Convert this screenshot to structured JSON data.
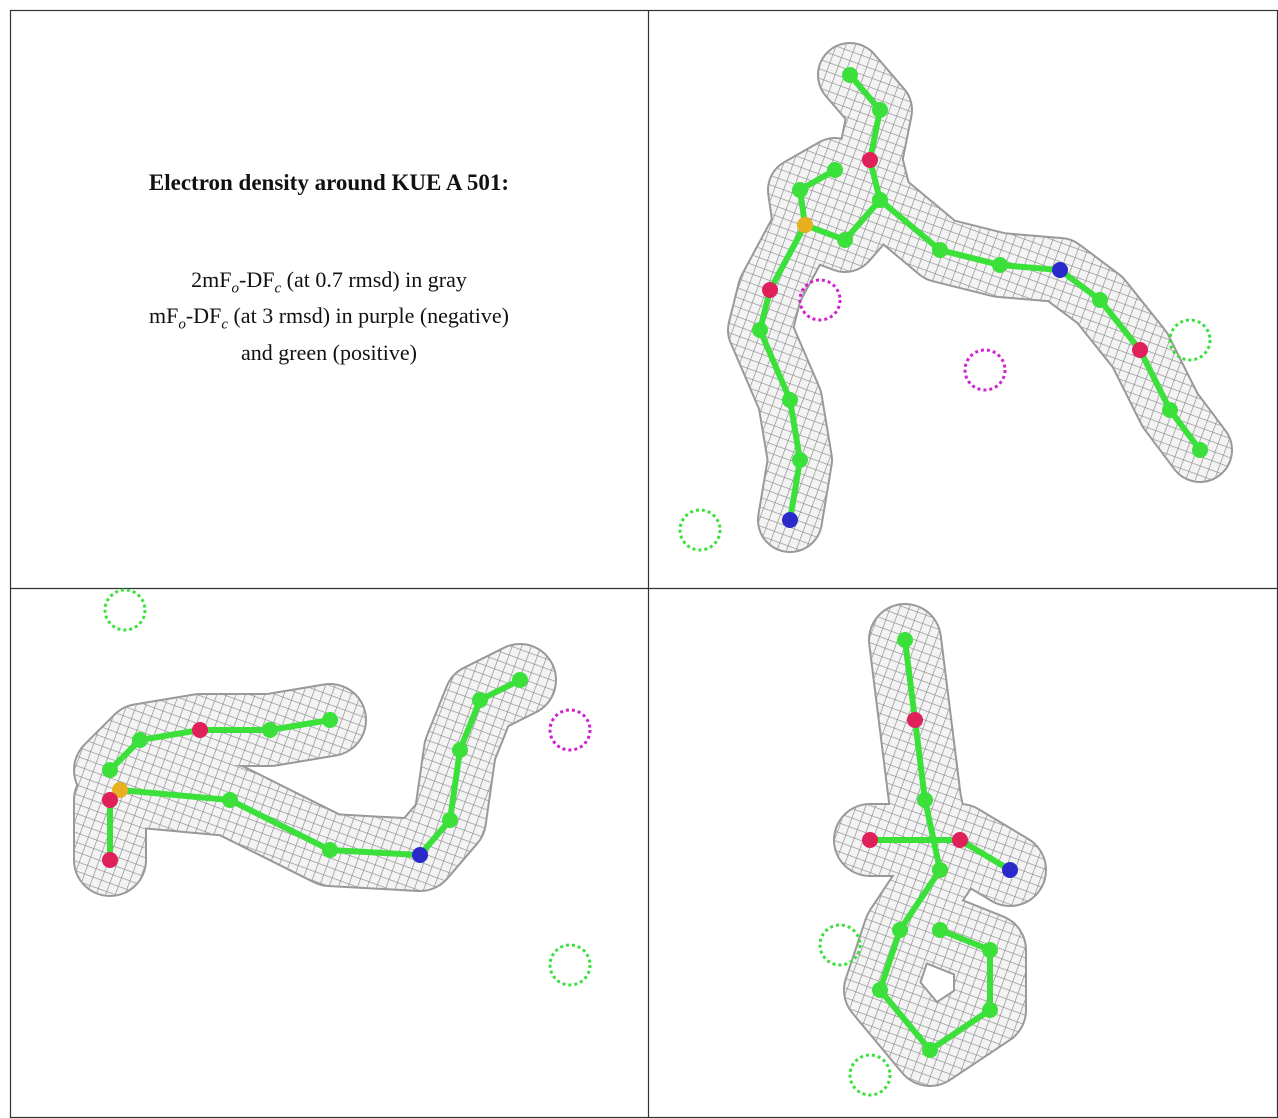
{
  "title": "Electron density around KUE A 501:",
  "legend": [
    {
      "parts": [
        "2mF",
        "o",
        "-DF",
        "c",
        " (at 0.7 rmsd) in gray"
      ]
    },
    {
      "parts": [
        "mF",
        "o",
        "-DF",
        "c",
        " (at 3 rmsd) in purple (negative)"
      ]
    },
    {
      "parts": [
        "and green (positive)"
      ]
    }
  ]
}
